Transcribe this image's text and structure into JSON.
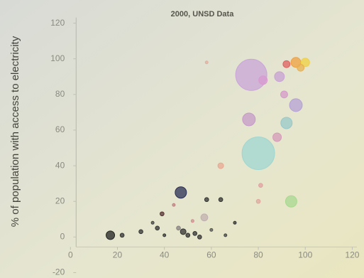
{
  "chart_data": {
    "type": "bubble",
    "title": "2000, UNSD Data",
    "y_label": "% of population with access to electricity",
    "x": [
      77,
      80,
      76,
      82,
      89,
      91,
      96,
      92,
      88,
      96,
      100,
      92,
      98,
      94,
      81,
      80,
      64,
      58,
      47,
      57,
      17,
      22,
      30,
      37,
      39,
      40,
      44,
      48,
      50,
      53,
      55,
      58,
      60,
      64,
      66,
      70,
      46,
      52,
      35
    ],
    "values": [
      91,
      47,
      66,
      88,
      90,
      80,
      74,
      64,
      56,
      98,
      98,
      97,
      95,
      20,
      29,
      20,
      40,
      98,
      25,
      11,
      1,
      1,
      3,
      5,
      13,
      1,
      18,
      3,
      1,
      2,
      0,
      21,
      4,
      21,
      1,
      8,
      5,
      9,
      8
    ],
    "sizes": [
      121,
      132,
      20,
      9,
      12,
      6,
      20,
      16,
      9,
      12,
      9,
      6,
      6,
      16,
      2,
      2,
      4,
      1,
      16,
      6,
      9,
      2,
      2,
      2,
      2,
      1,
      1,
      4,
      2,
      2,
      2,
      2,
      1,
      2,
      1,
      1,
      2,
      1,
      1
    ],
    "colors": [
      "#c9a6d8",
      "#9fd6d0",
      "#c59ac9",
      "#d89ad0",
      "#c8a2d4",
      "#d49ac8",
      "#b6a0d6",
      "#98c8c8",
      "#d49ab8",
      "#f0a040",
      "#f0d040",
      "#e06060",
      "#e8b050",
      "#a8d890",
      "#e0a0a0",
      "#e0a8a0",
      "#e8a890",
      "#e0b0a0",
      "#2a2f55",
      "#c0b0b0",
      "#222222",
      "#333333",
      "#333333",
      "#333333",
      "#553333",
      "#333333",
      "#c08080",
      "#333333",
      "#333333",
      "#333333",
      "#333333",
      "#333333",
      "#555555",
      "#333333",
      "#444444",
      "#333333",
      "#888080",
      "#d09090",
      "#444444"
    ],
    "xlim": [
      -30,
      125
    ],
    "ylim": [
      -23,
      133
    ],
    "xticks": [
      0,
      20,
      40,
      60,
      80,
      100,
      120
    ],
    "yticks": [
      -20,
      0,
      20,
      40,
      60,
      80,
      100,
      120
    ]
  }
}
